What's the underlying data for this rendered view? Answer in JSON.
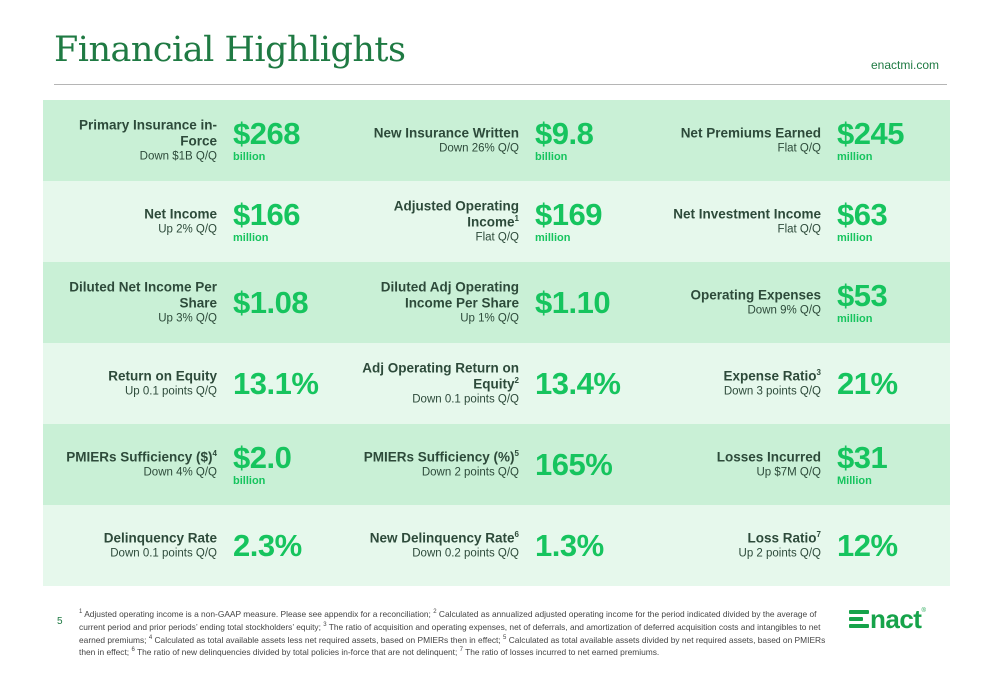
{
  "header": {
    "title": "Financial Highlights",
    "site": "enactmi.com"
  },
  "rows": [
    [
      {
        "name": "Primary Insurance in-Force",
        "sup": "",
        "change": "Down $1B Q/Q",
        "value": "$268",
        "unit": "billion"
      },
      {
        "name": "New Insurance Written",
        "sup": "",
        "change": "Down 26% Q/Q",
        "value": "$9.8",
        "unit": "billion"
      },
      {
        "name": "Net Premiums Earned",
        "sup": "",
        "change": "Flat Q/Q",
        "value": "$245",
        "unit": "million"
      }
    ],
    [
      {
        "name": "Net Income",
        "sup": "",
        "change": "Up 2% Q/Q",
        "value": "$166",
        "unit": "million"
      },
      {
        "name": "Adjusted Operating Income",
        "sup": "1",
        "change": "Flat Q/Q",
        "value": "$169",
        "unit": "million"
      },
      {
        "name": "Net Investment Income",
        "sup": "",
        "change": "Flat Q/Q",
        "value": "$63",
        "unit": "million"
      }
    ],
    [
      {
        "name": "Diluted Net Income Per Share",
        "sup": "",
        "change": "Up 3% Q/Q",
        "value": "$1.08",
        "unit": ""
      },
      {
        "name": "Diluted Adj Operating Income Per Share",
        "sup": "",
        "change": "Up 1% Q/Q",
        "value": "$1.10",
        "unit": ""
      },
      {
        "name": "Operating Expenses",
        "sup": "",
        "change": "Down 9% Q/Q",
        "value": "$53",
        "unit": "million"
      }
    ],
    [
      {
        "name": "Return on Equity",
        "sup": "",
        "change": "Up 0.1 points Q/Q",
        "value": "13.1%",
        "unit": ""
      },
      {
        "name": "Adj Operating Return on Equity",
        "sup": "2",
        "change": "Down 0.1 points Q/Q",
        "value": "13.4%",
        "unit": ""
      },
      {
        "name": "Expense Ratio",
        "sup": "3",
        "change": "Down 3 points Q/Q",
        "value": "21%",
        "unit": ""
      }
    ],
    [
      {
        "name": "PMIERs Sufficiency ($)",
        "sup": "4",
        "change": "Down 4% Q/Q",
        "value": "$2.0",
        "unit": "billion"
      },
      {
        "name": "PMIERs Sufficiency (%)",
        "sup": "5",
        "change": "Down 2 points Q/Q",
        "value": "165%",
        "unit": ""
      },
      {
        "name": "Losses Incurred",
        "sup": "",
        "change": "Up $7M Q/Q",
        "value": "$31",
        "unit": "Million"
      }
    ],
    [
      {
        "name": "Delinquency Rate",
        "sup": "",
        "change": "Down 0.1 points Q/Q",
        "value": "2.3%",
        "unit": ""
      },
      {
        "name": "New Delinquency Rate",
        "sup": "6",
        "change": "Down 0.2 points Q/Q",
        "value": "1.3%",
        "unit": ""
      },
      {
        "name": "Loss Ratio",
        "sup": "7",
        "change": "Up 2 points Q/Q",
        "value": "12%",
        "unit": ""
      }
    ]
  ],
  "footer": {
    "page_number": "5",
    "footnotes": [
      {
        "num": "1",
        "text": " Adjusted operating income is a non-GAAP measure. Please see appendix for a reconciliation; "
      },
      {
        "num": "2",
        "text": " Calculated as annualized adjusted operating income for the period indicated divided by the average of current period and prior periods’ ending total stockholders’ equity; "
      },
      {
        "num": "3",
        "text": " The ratio of acquisition and operating expenses, net of deferrals, and amortization of deferred acquisition costs and intangibles to net earned premiums; "
      },
      {
        "num": "4",
        "text": " Calculated as total available assets less net required assets, based on PMIERs then in effect; "
      },
      {
        "num": "5",
        "text": " Calculated as total available assets divided by net required assets, based on PMIERs then in effect;  "
      },
      {
        "num": "6",
        "text": " The ratio of new delinquencies divided by total policies in-force that are not delinquent; "
      },
      {
        "num": "7",
        "text": " The ratio of losses incurred to net earned premiums."
      }
    ],
    "logo_text": "nact",
    "logo_tm": "®"
  },
  "colors": {
    "brand_green": "#1f7a43",
    "value_green": "#16c45e",
    "row_dark": "#c9f0d6",
    "row_light": "#e6f8ec"
  }
}
